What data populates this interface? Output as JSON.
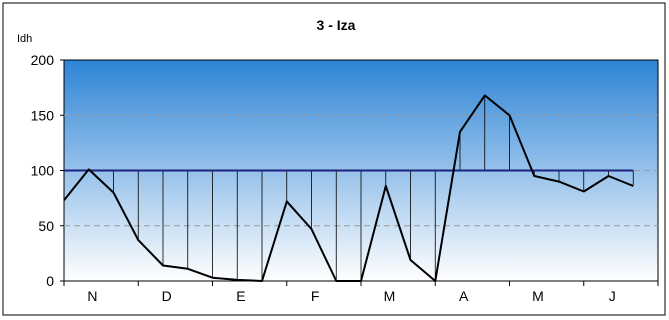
{
  "chart_data": {
    "type": "line",
    "title": "3 - Iza",
    "ylabel": "Idh",
    "xlabel": "",
    "ylim": [
      0,
      200
    ],
    "yticks": [
      0,
      50,
      100,
      150,
      200
    ],
    "month_labels": [
      "N",
      "D",
      "E",
      "F",
      "M",
      "A",
      "M",
      "J"
    ],
    "reference_line": 100,
    "grid": "horizontal-dashed",
    "legend": "none",
    "colors": {
      "series": "#000000",
      "reference": "#1a237e",
      "background_top": "#2e84d6",
      "background_bottom": "#ffffff",
      "grid": "#9a9a9a"
    },
    "series": [
      {
        "values": [
          73,
          101,
          80,
          37,
          14,
          11,
          3,
          1,
          0,
          72,
          47,
          0,
          0,
          86,
          19,
          0,
          135,
          168,
          150,
          95,
          90,
          81,
          95,
          86
        ]
      }
    ]
  }
}
